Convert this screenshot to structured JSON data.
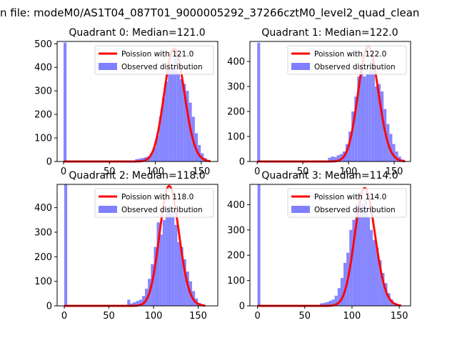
{
  "figure": {
    "suptitle": "n file: modeM0/AS1T04_087T01_9000005292_37266cztM0_level2_quad_clean"
  },
  "colors": {
    "poisson": "#ff0000",
    "observed": "#7f7fff",
    "axis": "#000000"
  },
  "chart_data": [
    {
      "type": "bar",
      "title": "Quadrant 0: Median=121.0",
      "median": 121.0,
      "xlim": [
        -7,
        168
      ],
      "ylim": [
        0,
        510
      ],
      "xticks": [
        0,
        50,
        100,
        150
      ],
      "yticks": [
        0,
        100,
        200,
        300,
        400,
        500
      ],
      "legend": {
        "position": "top-right",
        "entries": [
          "Poission with 121.0",
          "Observed distribution"
        ]
      },
      "series": [
        {
          "name": "Observed distribution",
          "type": "histogram",
          "bin_width": 3.25,
          "bin_starts": [
            0,
            78,
            81.25,
            84.5,
            87.75,
            91,
            94.25,
            97.5,
            100.75,
            104,
            107.25,
            110.5,
            113.75,
            117,
            120.25,
            123.5,
            126.75,
            130,
            133.25,
            136.5,
            139.75,
            143,
            146.25,
            149.5,
            152.75,
            156
          ],
          "counts": [
            505,
            10,
            12,
            15,
            18,
            22,
            35,
            60,
            110,
            190,
            270,
            340,
            390,
            400,
            450,
            380,
            350,
            330,
            300,
            250,
            190,
            120,
            70,
            35,
            15,
            5
          ]
        },
        {
          "name": "Poission with 121.0",
          "type": "line",
          "lambda": 121.0,
          "peak": 480,
          "x_range": [
            0,
            160
          ]
        }
      ]
    },
    {
      "type": "bar",
      "title": "Quadrant 1: Median=122.0",
      "median": 122.0,
      "xlim": [
        -8,
        168
      ],
      "ylim": [
        0,
        480
      ],
      "xticks": [
        0,
        50,
        100,
        150
      ],
      "yticks": [
        0,
        100,
        200,
        300,
        400
      ],
      "legend": {
        "position": "top-right",
        "entries": [
          "Poission with 122.0",
          "Observed distribution"
        ]
      },
      "series": [
        {
          "name": "Observed distribution",
          "type": "histogram",
          "bin_width": 3.2,
          "bin_starts": [
            0,
            77.6,
            80.8,
            84,
            87.2,
            90.4,
            93.6,
            96.8,
            100,
            103.2,
            106.4,
            109.6,
            112.8,
            116,
            119.2,
            122.4,
            125.6,
            128.8,
            132,
            135.2,
            138.4,
            141.6,
            144.8,
            148,
            151.2,
            154.4,
            157.6
          ],
          "counts": [
            475,
            15,
            20,
            18,
            25,
            30,
            40,
            70,
            120,
            200,
            260,
            340,
            380,
            340,
            350,
            370,
            410,
            300,
            310,
            280,
            210,
            150,
            110,
            70,
            40,
            20,
            8
          ]
        },
        {
          "name": "Poission with 122.0",
          "type": "line",
          "lambda": 122.0,
          "peak": 460,
          "x_range": [
            0,
            162
          ]
        }
      ]
    },
    {
      "type": "bar",
      "title": "Quadrant 2: Median=118.0",
      "median": 118.0,
      "xlim": [
        -8,
        172
      ],
      "ylim": [
        0,
        495
      ],
      "xticks": [
        0,
        50,
        100,
        150
      ],
      "yticks": [
        0,
        100,
        200,
        300,
        400
      ],
      "legend": {
        "position": "top-right",
        "entries": [
          "Poission with 118.0",
          "Observed distribution"
        ]
      },
      "series": [
        {
          "name": "Observed distribution",
          "type": "histogram",
          "bin_width": 3.3,
          "bin_starts": [
            0,
            70.6,
            73.9,
            77.2,
            80.5,
            83.8,
            87.1,
            90.4,
            93.7,
            97,
            100.3,
            103.6,
            106.9,
            110.2,
            113.5,
            116.8,
            120.1,
            123.4,
            126.7,
            130,
            133.3,
            136.6,
            139.9,
            143.2,
            146.5,
            149.8
          ],
          "counts": [
            495,
            25,
            10,
            15,
            20,
            25,
            40,
            70,
            110,
            170,
            240,
            340,
            290,
            350,
            400,
            410,
            380,
            330,
            260,
            240,
            190,
            140,
            100,
            60,
            30,
            12
          ]
        },
        {
          "name": "Poission with 118.0",
          "type": "line",
          "lambda": 118.0,
          "peak": 488,
          "x_range": [
            0,
            158
          ]
        }
      ]
    },
    {
      "type": "bar",
      "title": "Quadrant 3: Median=114.0",
      "median": 114.0,
      "xlim": [
        -8,
        162
      ],
      "ylim": [
        0,
        480
      ],
      "xticks": [
        0,
        50,
        100,
        150
      ],
      "yticks": [
        0,
        100,
        200,
        300,
        400
      ],
      "legend": {
        "position": "top-right",
        "entries": [
          "Poission with 114.0",
          "Observed distribution"
        ]
      },
      "series": [
        {
          "name": "Observed distribution",
          "type": "histogram",
          "bin_width": 3.1,
          "bin_starts": [
            0,
            66.2,
            69.3,
            72.4,
            75.5,
            78.6,
            81.7,
            84.8,
            87.9,
            91,
            94.1,
            97.2,
            100.3,
            103.4,
            106.5,
            109.6,
            112.7,
            115.8,
            118.9,
            122,
            125.1,
            128.2,
            131.3,
            134.4,
            137.5,
            140.6,
            143.7,
            146.8
          ],
          "counts": [
            480,
            10,
            12,
            15,
            20,
            25,
            40,
            70,
            110,
            170,
            210,
            300,
            340,
            400,
            450,
            400,
            420,
            350,
            300,
            260,
            230,
            180,
            130,
            90,
            50,
            25,
            12,
            5
          ]
        },
        {
          "name": "Poission with 114.0",
          "type": "line",
          "lambda": 114.0,
          "peak": 465,
          "x_range": [
            0,
            152
          ]
        }
      ]
    }
  ]
}
